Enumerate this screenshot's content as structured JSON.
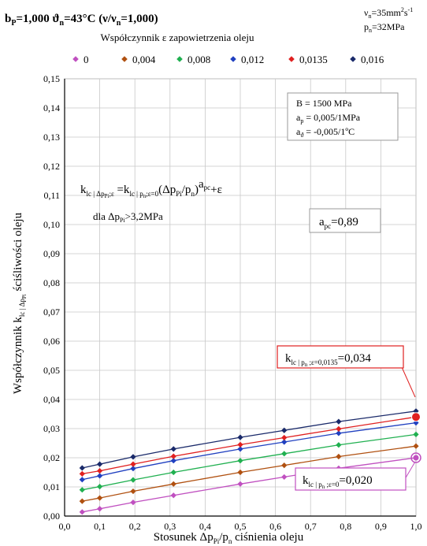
{
  "header": {
    "left_a": "b",
    "left_a_sub": "P",
    "left_b": "=1,000    ϑ",
    "left_b_sub": "n",
    "left_c": "=43°C (ν/ν",
    "left_c_sub": "n",
    "left_d": "=1,000)",
    "right_line1_a": "ν",
    "right_line1_sub": "n",
    "right_line1_b": "=35mm",
    "right_line1_sup1": "2",
    "right_line1_c": "s",
    "right_line1_sup2": "-1",
    "right_line2_a": "p",
    "right_line2_sub": "n",
    "right_line2_b": "=32MPa"
  },
  "legend_title": "Współczynnik ε zapowietrzenia oleju",
  "params_box": {
    "line1": "B = 1500 MPa",
    "line2_a": "a",
    "line2_sub": "p",
    "line2_b": " = 0,005/1MPa",
    "line3_a": "a",
    "line3_sub": "ϑ",
    "line3_b": " = -0,005/1ºC"
  },
  "formula": {
    "k1": "k",
    "k1_sub": "lc | Δp",
    "k1_subsub": "Pi",
    "k1_sub2": ";ε",
    "eq": " =k",
    "k2_sub": "lc | p",
    "k2_subsub": "n",
    "k2_sub2": ";ε=0",
    "paren": "(Δp",
    "paren_sub": "Pi",
    "paren_b": "/p",
    "paren_sub2": "n",
    "paren_c": ")",
    "exp_a": "a",
    "exp_sub": "pc",
    "tail": "+ε",
    "dla": "dla  Δp",
    "dla_sub": "Pi",
    "dla_b": ">3,2MPa"
  },
  "apc_box": {
    "a": "a",
    "sub": "pc",
    "b": "=0,89"
  },
  "callout_top": {
    "a": "k",
    "sub": "lc | p",
    "subsub": "n",
    "sub2": " ;ε=0,0135",
    "b": "=0,034"
  },
  "callout_bottom": {
    "a": "k",
    "sub": "lc | p",
    "subsub": "n",
    "sub2": " ;ε=0",
    "b": "=0,020"
  },
  "colors": {
    "s0": "#c050c0",
    "s1": "#b05010",
    "s2": "#20b050",
    "s3": "#2040c0",
    "s4": "#e02020",
    "s5": "#1a2a6a",
    "callout_top_border": "#e02020",
    "callout_bottom_border": "#c050c0"
  },
  "chart_data": {
    "type": "line",
    "title": "",
    "xlabel_a": "Stosunek Δp",
    "xlabel_sub": "Pi",
    "xlabel_b": "/p",
    "xlabel_sub2": "n",
    "xlabel_c": " ciśnienia oleju",
    "ylabel_a": "Współczynnik k",
    "ylabel_sub": "lc | Δp",
    "ylabel_subsub": "Pi",
    "ylabel_b": " ściśliwości oleju",
    "xlim": [
      0.0,
      1.0
    ],
    "ylim": [
      0.0,
      0.15
    ],
    "x_ticks": [
      "0,0",
      "0,1",
      "0,2",
      "0,3",
      "0,4",
      "0,5",
      "0,6",
      "0,7",
      "0,8",
      "0,9",
      "1,0"
    ],
    "y_ticks": [
      "0,00",
      "0,01",
      "0,02",
      "0,03",
      "0,04",
      "0,05",
      "0,06",
      "0,07",
      "0,08",
      "0,09",
      "0,10",
      "0,11",
      "0,12",
      "0,13",
      "0,14",
      "0,15"
    ],
    "grid": true,
    "legend_position": "top",
    "x": [
      0.05,
      0.1,
      0.195,
      0.31,
      0.5,
      0.625,
      0.78,
      1.0
    ],
    "series": [
      {
        "name": "0",
        "values": [
          0.0014,
          0.0025,
          0.0047,
          0.0071,
          0.011,
          0.0134,
          0.0164,
          0.02
        ]
      },
      {
        "name": "0,004",
        "values": [
          0.0051,
          0.0062,
          0.0085,
          0.011,
          0.015,
          0.0174,
          0.0204,
          0.024
        ]
      },
      {
        "name": "0,008",
        "values": [
          0.009,
          0.0101,
          0.0124,
          0.015,
          0.019,
          0.0214,
          0.0244,
          0.028
        ]
      },
      {
        "name": "0,012",
        "values": [
          0.0125,
          0.0138,
          0.0163,
          0.019,
          0.023,
          0.0254,
          0.0284,
          0.032
        ]
      },
      {
        "name": "0,0135",
        "values": [
          0.0145,
          0.0155,
          0.0178,
          0.0205,
          0.0245,
          0.0269,
          0.0299,
          0.034
        ]
      },
      {
        "name": "0,016",
        "values": [
          0.0165,
          0.0178,
          0.0203,
          0.023,
          0.027,
          0.0294,
          0.0324,
          0.036
        ]
      }
    ]
  }
}
